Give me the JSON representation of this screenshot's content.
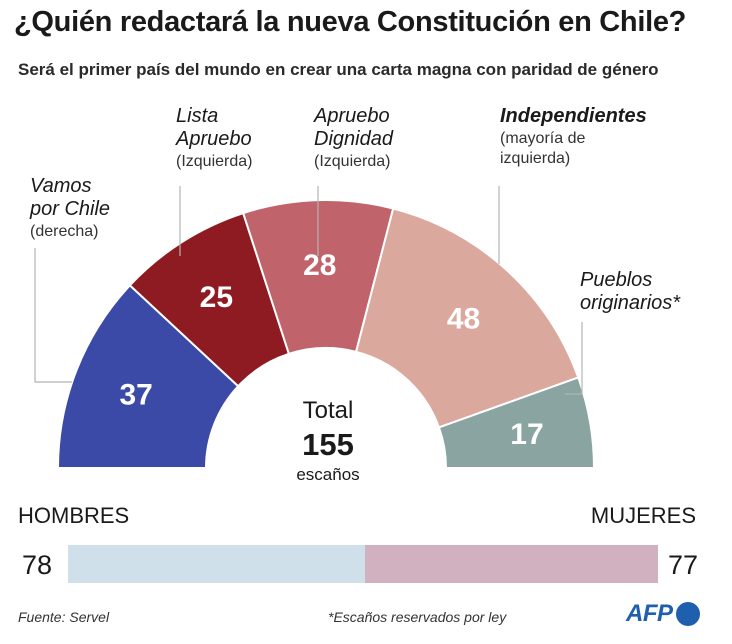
{
  "title": "¿Quién redactará la nueva Constitución en Chile?",
  "subtitle": "Será el primer país del mundo en crear una carta magna con paridad de género",
  "chart_data": {
    "type": "parliament-semicircle",
    "total_label": "Total",
    "total": 155,
    "total_unit": "escaños",
    "series": [
      {
        "name": "Vamos por Chile",
        "name_lines": [
          "Vamos",
          "por Chile"
        ],
        "sub_lines": [
          "(derecha)"
        ],
        "value": 37,
        "color": "#3a4aa6",
        "label_color": "#ffffff"
      },
      {
        "name": "Lista Apruebo",
        "name_lines": [
          "Lista",
          "Apruebo"
        ],
        "sub_lines": [
          "(Izquierda)"
        ],
        "value": 25,
        "color": "#8e1b21",
        "label_color": "#ffffff"
      },
      {
        "name": "Apruebo Dignidad",
        "name_lines": [
          "Apruebo",
          "Dignidad"
        ],
        "sub_lines": [
          "(Izquierda)"
        ],
        "value": 28,
        "color": "#c0636a",
        "label_color": "#ffffff"
      },
      {
        "name": "Independientes",
        "name_lines": [
          "Independientes"
        ],
        "sub_lines": [
          "(mayoría de",
          "izquierda)"
        ],
        "value": 48,
        "color": "#dba89e",
        "label_color": "#ffffff"
      },
      {
        "name": "Pueblos originarios*",
        "name_lines": [
          "Pueblos",
          "originarios*"
        ],
        "sub_lines": [],
        "value": 17,
        "color": "#8aa4a2",
        "label_color": "#ffffff"
      }
    ],
    "gender": {
      "left_label": "HOMBRES",
      "left_value": 78,
      "left_color": "#cfe0ea",
      "right_label": "MUJERES",
      "right_value": 77,
      "right_color": "#d1b1c0"
    }
  },
  "footer": {
    "source": "Fuente: Servel",
    "note": "*Escaños reservados por ley",
    "logo_text": "AFP"
  }
}
